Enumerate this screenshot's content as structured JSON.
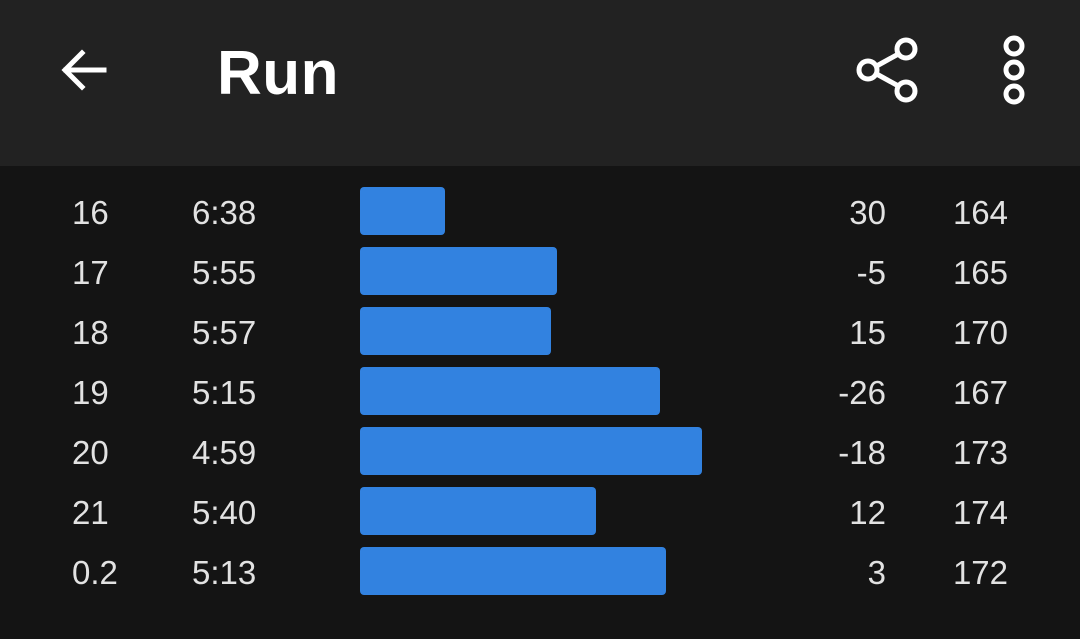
{
  "app_bar": {
    "title": "Run",
    "back_icon": "arrow-left-icon",
    "share_icon": "share-icon",
    "more_icon": "more-vertical-icon",
    "background": "#222222"
  },
  "splits": {
    "bar_color": "#3282e0",
    "rows": [
      {
        "km": "16",
        "pace": "6:38",
        "pace_seconds": 398,
        "elevation": "30",
        "heart_rate": "164"
      },
      {
        "km": "17",
        "pace": "5:55",
        "pace_seconds": 355,
        "elevation": "-5",
        "heart_rate": "165"
      },
      {
        "km": "18",
        "pace": "5:57",
        "pace_seconds": 357,
        "elevation": "15",
        "heart_rate": "170"
      },
      {
        "km": "19",
        "pace": "5:15",
        "pace_seconds": 315,
        "elevation": "-26",
        "heart_rate": "167"
      },
      {
        "km": "20",
        "pace": "4:59",
        "pace_seconds": 299,
        "elevation": "-18",
        "heart_rate": "173"
      },
      {
        "km": "21",
        "pace": "5:40",
        "pace_seconds": 340,
        "elevation": "12",
        "heart_rate": "174"
      },
      {
        "km": "0.2",
        "pace": "5:13",
        "pace_seconds": 313,
        "elevation": "3",
        "heart_rate": "172"
      }
    ]
  }
}
